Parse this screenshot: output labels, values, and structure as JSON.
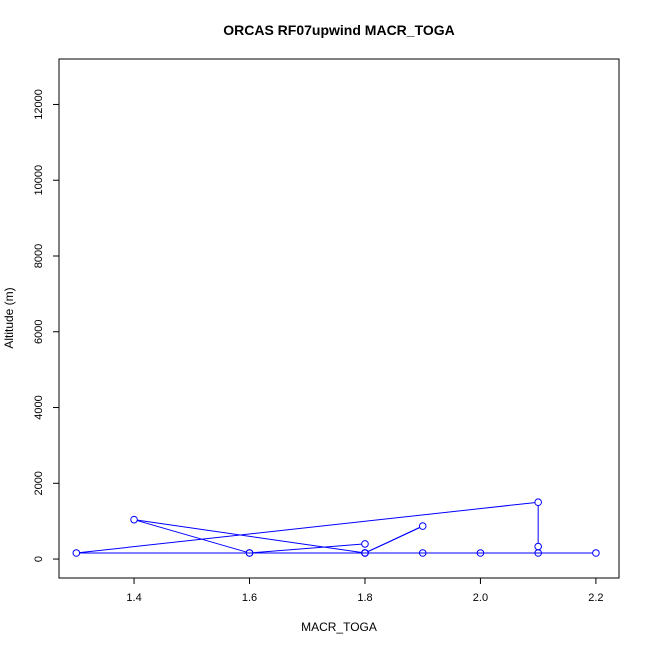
{
  "chart_data": {
    "type": "line",
    "title": "ORCAS RF07upwind MACR_TOGA",
    "xlabel": "MACR_TOGA",
    "ylabel": "Altitude (m)",
    "xlim": [
      1.27,
      2.24
    ],
    "ylim": [
      -500,
      13200
    ],
    "x_ticks": [
      1.4,
      1.6,
      1.8,
      2.0,
      2.2
    ],
    "x_tick_labels": [
      "1.4",
      "1.6",
      "1.8",
      "2.0",
      "2.2"
    ],
    "y_ticks": [
      0,
      2000,
      4000,
      6000,
      8000,
      10000,
      12000
    ],
    "y_tick_labels": [
      "0",
      "2000",
      "4000",
      "6000",
      "8000",
      "10000",
      "12000"
    ],
    "grid": false,
    "series": [
      {
        "color": "#0000ff",
        "marker": "open-circle",
        "points": [
          {
            "x": 1.8,
            "y": 400
          },
          {
            "x": 1.6,
            "y": 160
          },
          {
            "x": 1.8,
            "y": 160
          },
          {
            "x": 1.4,
            "y": 1040
          },
          {
            "x": 1.6,
            "y": 160
          },
          {
            "x": 2.2,
            "y": 160
          },
          {
            "x": 2.1,
            "y": 160
          },
          {
            "x": 2.0,
            "y": 160
          },
          {
            "x": 1.9,
            "y": 160
          },
          {
            "x": 1.8,
            "y": 160
          },
          {
            "x": 1.9,
            "y": 870
          },
          {
            "x": 1.8,
            "y": 160
          },
          {
            "x": 1.3,
            "y": 160
          },
          {
            "x": 2.1,
            "y": 1500
          },
          {
            "x": 2.1,
            "y": 330
          }
        ]
      }
    ]
  }
}
